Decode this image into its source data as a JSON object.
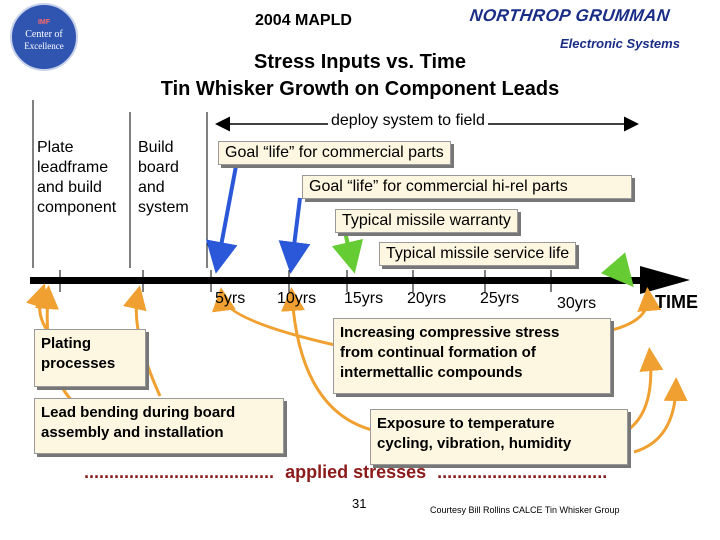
{
  "header": {
    "conference": "2004 MAPLD",
    "brand_name": "NORTHROP GRUMMAN",
    "brand_division": "Electronic Systems",
    "logo_lines": [
      "IMF",
      "Center of",
      "Excellence"
    ]
  },
  "title": {
    "line1": "Stress Inputs vs. Time",
    "line2": "Tin Whisker Growth on Component Leads"
  },
  "phases": {
    "plate": "Plate\nleadframe\nand build\ncomponent",
    "build": "Build\nboard\nand\nsystem",
    "deploy": "deploy system to field"
  },
  "goals": {
    "commercial": "Goal “life” for commercial parts",
    "hirel": "Goal “life” for commercial hi-rel parts",
    "warranty": "Typical missile warranty",
    "service": "Typical missile service life"
  },
  "timeline": {
    "ticks": [
      "5yrs",
      "10yrs",
      "15yrs",
      "20yrs",
      "25yrs",
      "30yrs"
    ],
    "axis_label": "TIME"
  },
  "stresses": {
    "plating": "Plating\nprocesses",
    "bending": "Lead bending during board\nassembly and installation",
    "compressive": "Increasing compressive stress\nfrom continual formation of\nintermettallic compounds",
    "exposure": "Exposure to temperature\ncycling, vibration, humidity"
  },
  "footer": {
    "applied_left": "......................................",
    "applied_label": "applied stresses",
    "applied_right": "..................................",
    "page_number": "31",
    "credit": "Courtesy Bill Rollins CALCE Tin Whisker Group"
  },
  "colors": {
    "blue_arrow": "#2b57d9",
    "green_arrow": "#66cc33",
    "orange_arrow": "#f0a030",
    "box_fill": "#fdf6e0",
    "brand": "#1a2d86",
    "applied": "#8b1a1a"
  }
}
